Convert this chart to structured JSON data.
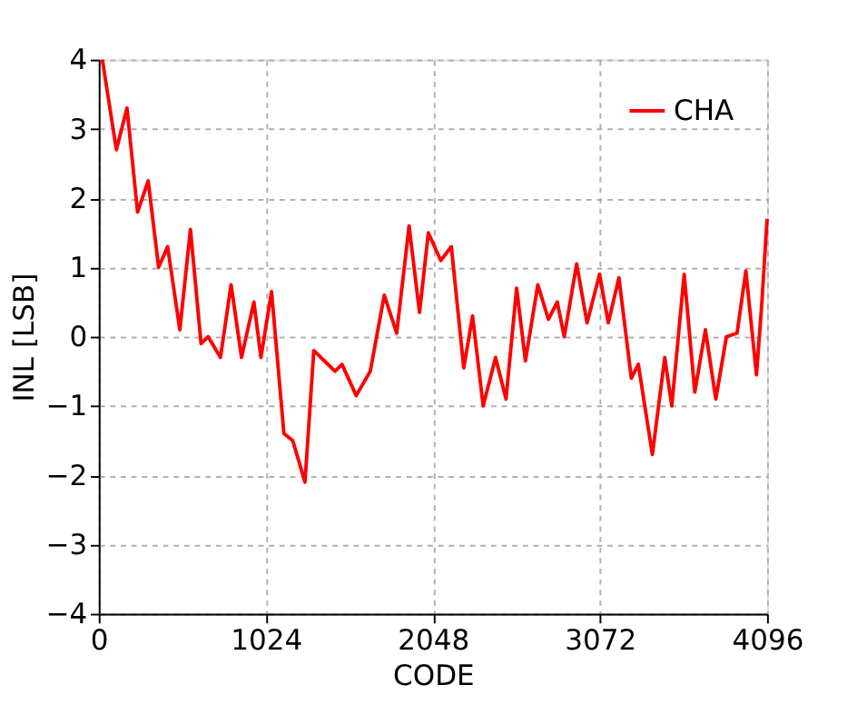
{
  "chart_data": {
    "type": "line",
    "xlabel": "CODE",
    "ylabel": "INL [LSB]",
    "x": [
      22,
      108,
      173,
      238,
      303,
      367,
      422,
      497,
      562,
      627,
      670,
      746,
      811,
      875,
      951,
      994,
      1059,
      1135,
      1189,
      1264,
      1318,
      1383,
      1448,
      1491,
      1578,
      1664,
      1750,
      1826,
      1902,
      1966,
      2020,
      2096,
      2161,
      2237,
      2291,
      2356,
      2432,
      2496,
      2561,
      2615,
      2691,
      2756,
      2810,
      2853,
      2929,
      2993,
      3069,
      3123,
      3188,
      3264,
      3307,
      3393,
      3469,
      3512,
      3588,
      3653,
      3718,
      3782,
      3847,
      3912,
      3966,
      4031,
      4063,
      4096
    ],
    "series": [
      {
        "name": "CHA",
        "color": "#ff0000",
        "values": [
          4.0,
          2.7,
          3.3,
          1.8,
          2.25,
          1.0,
          1.3,
          0.1,
          1.55,
          -0.1,
          0.0,
          -0.3,
          0.75,
          -0.3,
          0.5,
          -0.3,
          0.65,
          -1.4,
          -1.5,
          -2.1,
          -0.2,
          -0.35,
          -0.5,
          -0.4,
          -0.85,
          -0.5,
          0.6,
          0.05,
          1.6,
          0.35,
          1.5,
          1.1,
          1.3,
          -0.45,
          0.3,
          -1.0,
          -0.3,
          -0.9,
          0.7,
          -0.35,
          0.75,
          0.25,
          0.5,
          0.0,
          1.05,
          0.2,
          0.9,
          0.2,
          0.85,
          -0.6,
          -0.4,
          -1.7,
          -0.3,
          -1.0,
          0.9,
          -0.8,
          0.1,
          -0.9,
          0.0,
          0.05,
          0.95,
          -0.55,
          0.45,
          1.7
        ]
      }
    ],
    "xlim": [
      0,
      4096
    ],
    "xticks": [
      0,
      1024,
      2048,
      3072,
      4096
    ],
    "ylim": [
      -4,
      4
    ],
    "yticks": [
      -4,
      -3,
      -2,
      -1,
      0,
      1,
      2,
      3,
      4
    ],
    "grid": true,
    "legend": "top right",
    "line_style": "solid",
    "marker": "none"
  }
}
